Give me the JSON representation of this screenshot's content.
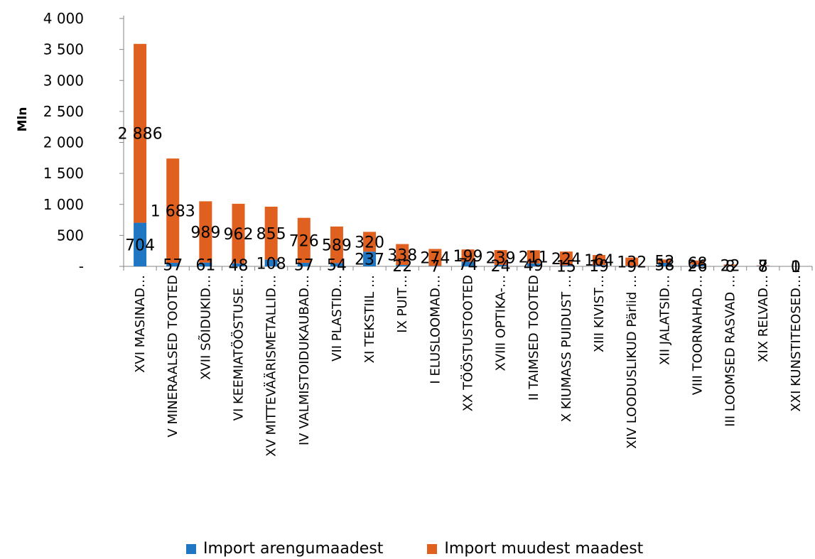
{
  "colors": {
    "developing": "#1f77c4",
    "other": "#e06020",
    "axis": "#868686"
  },
  "legend": {
    "developing_label": "Import arengumaadest",
    "other_label": "Import muudest maadest"
  },
  "chart_data": {
    "type": "bar",
    "stacked": true,
    "ylabel": "Mln",
    "ylim": [
      0,
      4000
    ],
    "yticks": [
      "-",
      "500",
      "1 000",
      "1 500",
      "2 000",
      "2 500",
      "3 000",
      "3 500",
      "4 000"
    ],
    "ytick_values": [
      0,
      500,
      1000,
      1500,
      2000,
      2500,
      3000,
      3500,
      4000
    ],
    "categories": [
      "XVI  MASINAD…",
      "V  MINERAALSED TOOTED",
      "XVII  SÕIDUKID…",
      "VI  KEEMIATÖÖSTUSE…",
      "XV  MITTEVÄÄRISMETALLID…",
      "IV  VALMISTOIDUKAUBAD…",
      "VII  PLASTID…",
      "XI TEKSTIIL …",
      "IX  PUIT…",
      "I  ELUSLOOMAD…",
      "XX  TÖÖSTUSTOOTED",
      "XVIII  OPTIKA-…",
      "II  TAIMSED TOOTED",
      "X  KIUMASS PUIDUST …",
      "XIII  KIVIST…",
      "XIV  LOODUSLIKUD Pärlid …",
      "XII JALATSID…",
      "VIII  TOORNAHAD…",
      "III  LOOMSED RASVAD …",
      "XIX RELVAD…",
      "XXI  KUNSTITEOSED…"
    ],
    "series": [
      {
        "name": "Import arengumaadest",
        "values": [
          704,
          57,
          61,
          48,
          108,
          57,
          54,
          237,
          22,
          7,
          74,
          24,
          49,
          15,
          19,
          9,
          58,
          26,
          8,
          8,
          0
        ],
        "labels": [
          "704",
          "57",
          "61",
          "48",
          "108",
          "57",
          "54",
          "237",
          "22",
          "7",
          "74",
          "24",
          "49",
          "15",
          "19",
          "9",
          "58",
          "26",
          "8",
          "8",
          "0"
        ]
      },
      {
        "name": "Import muudest maadest",
        "values": [
          2886,
          1683,
          989,
          962,
          855,
          726,
          589,
          320,
          338,
          274,
          199,
          239,
          211,
          224,
          164,
          132,
          52,
          68,
          22,
          7,
          1
        ],
        "labels": [
          "2 886",
          "1 683",
          "989",
          "962",
          "855",
          "726",
          "589",
          "320",
          "338",
          "274",
          "199",
          "239",
          "211",
          "224",
          "164",
          "132",
          "52",
          "68",
          "22",
          "7",
          "1"
        ]
      }
    ]
  }
}
